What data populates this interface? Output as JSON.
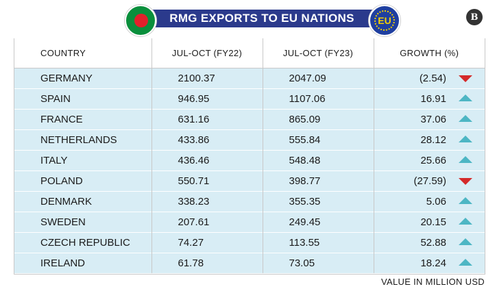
{
  "title": "RMG EXPORTS TO EU NATIONS",
  "eu_flag_text": "EU",
  "logo_text": "B",
  "colors": {
    "title_bar": "#2b3a8c",
    "row_bg": "#d8edf5",
    "up_arrow": "#4db6c4",
    "down_arrow": "#d42a2a"
  },
  "footnote": "VALUE IN MILLION USD",
  "chart_data": {
    "type": "table",
    "columns": [
      "COUNTRY",
      "JUL-OCT (FY22)",
      "JUL-OCT (FY23)",
      "GROWTH (%)"
    ],
    "rows": [
      {
        "country": "GERMANY",
        "fy22": "2100.37",
        "fy23": "2047.09",
        "growth": "(2.54)",
        "trend": "down"
      },
      {
        "country": "SPAIN",
        "fy22": "946.95",
        "fy23": "1107.06",
        "growth": "16.91",
        "trend": "up"
      },
      {
        "country": "FRANCE",
        "fy22": "631.16",
        "fy23": "865.09",
        "growth": "37.06",
        "trend": "up"
      },
      {
        "country": "NETHERLANDS",
        "fy22": "433.86",
        "fy23": "555.84",
        "growth": "28.12",
        "trend": "up"
      },
      {
        "country": "ITALY",
        "fy22": "436.46",
        "fy23": "548.48",
        "growth": "25.66",
        "trend": "up"
      },
      {
        "country": "POLAND",
        "fy22": "550.71",
        "fy23": "398.77",
        "growth": "(27.59)",
        "trend": "down"
      },
      {
        "country": "DENMARK",
        "fy22": "338.23",
        "fy23": "355.35",
        "growth": "5.06",
        "trend": "up"
      },
      {
        "country": "SWEDEN",
        "fy22": "207.61",
        "fy23": "249.45",
        "growth": "20.15",
        "trend": "up"
      },
      {
        "country": "CZECH REPUBLIC",
        "fy22": "74.27",
        "fy23": "113.55",
        "growth": "52.88",
        "trend": "up"
      },
      {
        "country": "IRELAND",
        "fy22": "61.78",
        "fy23": "73.05",
        "growth": "18.24",
        "trend": "up"
      }
    ]
  }
}
